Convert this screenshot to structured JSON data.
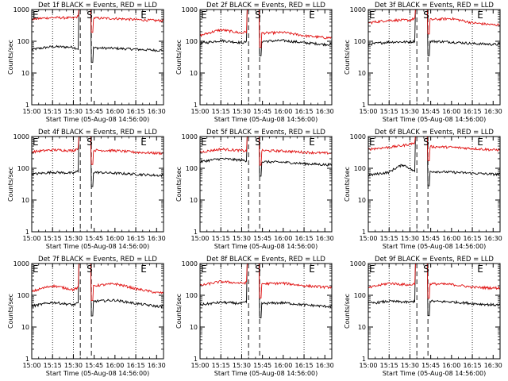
{
  "chart_data": [
    {
      "type": "line",
      "title": "Det 1f BLACK = Events, RED = LLD",
      "xlabel": "Start Time (05-Aug-08 14:56:00)",
      "ylabel": "Counts/sec",
      "x_range": [
        "15:00",
        "16:35"
      ],
      "y_scale": "log",
      "ylim": [
        1,
        1000
      ],
      "x_ticks": [
        "15:00",
        "15:15",
        "15:30",
        "15:45",
        "16:00",
        "16:15",
        "16:30"
      ],
      "y_ticks": [
        "1",
        "10",
        "100",
        "1000"
      ],
      "markers": [
        {
          "label": "E",
          "x": "15:00"
        },
        {
          "label": "S",
          "x": "15:39"
        },
        {
          "label": "E",
          "x": "16:18"
        }
      ],
      "dashed_lines": [
        "15:35",
        "15:43"
      ],
      "dotted_lines": [
        "15:15",
        "15:30",
        "16:15"
      ],
      "series": [
        {
          "name": "BLACK = Events",
          "color": "#000000",
          "x": [
            "15:00",
            "15:15",
            "15:30",
            "15:33",
            "15:45",
            "16:00",
            "16:15",
            "16:30"
          ],
          "y": [
            55,
            68,
            65,
            58,
            62,
            60,
            56,
            52
          ]
        },
        {
          "name": "RED = LLD",
          "color": "#e01010",
          "x": [
            "15:00",
            "15:15",
            "15:30",
            "15:33",
            "15:45",
            "16:00",
            "16:15",
            "16:30"
          ],
          "y": [
            500,
            560,
            540,
            600,
            540,
            520,
            480,
            450
          ]
        }
      ]
    },
    {
      "type": "line",
      "title": "Det 2f BLACK = Events, RED = LLD",
      "xlabel": "Start Time (05-Aug-08 14:56:00)",
      "ylabel": "Counts/sec",
      "x_range": [
        "15:00",
        "16:35"
      ],
      "y_scale": "log",
      "ylim": [
        1,
        1000
      ],
      "x_ticks": [
        "15:00",
        "15:15",
        "15:30",
        "15:45",
        "16:00",
        "16:15",
        "16:30"
      ],
      "y_ticks": [
        "1",
        "10",
        "100",
        "1000"
      ],
      "markers": [
        {
          "label": "E",
          "x": "15:00"
        },
        {
          "label": "S",
          "x": "15:39"
        },
        {
          "label": "E",
          "x": "16:18"
        }
      ],
      "dashed_lines": [
        "15:35",
        "15:43"
      ],
      "dotted_lines": [
        "15:15",
        "15:30",
        "16:15"
      ],
      "series": [
        {
          "name": "BLACK = Events",
          "color": "#000000",
          "x": [
            "15:00",
            "15:15",
            "15:30",
            "15:33",
            "15:45",
            "16:00",
            "16:15",
            "16:30"
          ],
          "y": [
            85,
            105,
            90,
            95,
            100,
            105,
            90,
            80
          ]
        },
        {
          "name": "RED = LLD",
          "color": "#e01010",
          "x": [
            "15:00",
            "15:15",
            "15:30",
            "15:33",
            "15:45",
            "16:00",
            "16:15",
            "16:30"
          ],
          "y": [
            150,
            230,
            180,
            200,
            180,
            190,
            150,
            130
          ]
        }
      ]
    },
    {
      "type": "line",
      "title": "Det 3f BLACK = Events, RED = LLD",
      "xlabel": "Start Time (05-Aug-08 14:56:00)",
      "ylabel": "Counts/sec",
      "x_range": [
        "15:00",
        "16:35"
      ],
      "y_scale": "log",
      "ylim": [
        1,
        1000
      ],
      "x_ticks": [
        "15:00",
        "15:15",
        "15:30",
        "15:45",
        "16:00",
        "16:15",
        "16:30"
      ],
      "y_ticks": [
        "1",
        "10",
        "100",
        "1000"
      ],
      "markers": [
        {
          "label": "E",
          "x": "15:00"
        },
        {
          "label": "S",
          "x": "15:39"
        },
        {
          "label": "E",
          "x": "16:18"
        }
      ],
      "dashed_lines": [
        "15:35",
        "15:43"
      ],
      "dotted_lines": [
        "15:15",
        "15:30",
        "16:15"
      ],
      "series": [
        {
          "name": "BLACK = Events",
          "color": "#000000",
          "x": [
            "15:00",
            "15:15",
            "15:30",
            "15:33",
            "15:45",
            "16:00",
            "16:15",
            "16:30"
          ],
          "y": [
            80,
            95,
            95,
            100,
            100,
            95,
            85,
            80
          ]
        },
        {
          "name": "RED = LLD",
          "color": "#e01010",
          "x": [
            "15:00",
            "15:15",
            "15:30",
            "15:33",
            "15:45",
            "16:00",
            "16:15",
            "16:30"
          ],
          "y": [
            380,
            460,
            460,
            520,
            480,
            520,
            380,
            330
          ]
        }
      ]
    },
    {
      "type": "line",
      "title": "Det 4f BLACK = Events, RED = LLD",
      "xlabel": "Start Time (05-Aug-08 14:56:00)",
      "ylabel": "Counts/sec",
      "x_range": [
        "15:00",
        "16:35"
      ],
      "y_scale": "log",
      "ylim": [
        1,
        1000
      ],
      "x_ticks": [
        "15:00",
        "15:15",
        "15:30",
        "15:45",
        "16:00",
        "16:15",
        "16:30"
      ],
      "y_ticks": [
        "1",
        "10",
        "100",
        "1000"
      ],
      "markers": [
        {
          "label": "E",
          "x": "15:00"
        },
        {
          "label": "S",
          "x": "15:39"
        },
        {
          "label": "E",
          "x": "16:18"
        }
      ],
      "dashed_lines": [
        "15:35",
        "15:43"
      ],
      "dotted_lines": [
        "15:15",
        "15:30",
        "16:15"
      ],
      "series": [
        {
          "name": "BLACK = Events",
          "color": "#000000",
          "x": [
            "15:00",
            "15:15",
            "15:30",
            "15:33",
            "15:45",
            "16:00",
            "16:15",
            "16:30"
          ],
          "y": [
            65,
            75,
            70,
            80,
            75,
            70,
            65,
            60
          ]
        },
        {
          "name": "RED = LLD",
          "color": "#e01010",
          "x": [
            "15:00",
            "15:15",
            "15:30",
            "15:33",
            "15:45",
            "16:00",
            "16:15",
            "16:30"
          ],
          "y": [
            330,
            380,
            360,
            420,
            370,
            360,
            320,
            300
          ]
        }
      ]
    },
    {
      "type": "line",
      "title": "Det 5f BLACK = Events, RED = LLD",
      "xlabel": "Start Time (05-Aug-08 14:56:00)",
      "ylabel": "Counts/sec",
      "x_range": [
        "15:00",
        "16:35"
      ],
      "y_scale": "log",
      "ylim": [
        1,
        1000
      ],
      "x_ticks": [
        "15:00",
        "15:15",
        "15:30",
        "15:45",
        "16:00",
        "16:15",
        "16:30"
      ],
      "y_ticks": [
        "1",
        "10",
        "100",
        "1000"
      ],
      "markers": [
        {
          "label": "E",
          "x": "15:00"
        },
        {
          "label": "S",
          "x": "15:39"
        },
        {
          "label": "E",
          "x": "16:18"
        }
      ],
      "dashed_lines": [
        "15:35",
        "15:43"
      ],
      "dotted_lines": [
        "15:15",
        "15:30",
        "16:15"
      ],
      "series": [
        {
          "name": "BLACK = Events",
          "color": "#000000",
          "x": [
            "15:00",
            "15:15",
            "15:30",
            "15:33",
            "15:45",
            "16:00",
            "16:15",
            "16:30"
          ],
          "y": [
            160,
            200,
            180,
            175,
            160,
            155,
            140,
            130
          ]
        },
        {
          "name": "RED = LLD",
          "color": "#e01010",
          "x": [
            "15:00",
            "15:15",
            "15:30",
            "15:33",
            "15:45",
            "16:00",
            "16:15",
            "16:30"
          ],
          "y": [
            320,
            400,
            360,
            350,
            360,
            350,
            320,
            300
          ]
        }
      ]
    },
    {
      "type": "line",
      "title": "Det 6f BLACK = Events, RED = LLD",
      "xlabel": "Start Time (05-Aug-08 14:56:00)",
      "ylabel": "Counts/sec",
      "x_range": [
        "15:00",
        "16:35"
      ],
      "y_scale": "log",
      "ylim": [
        1,
        1000
      ],
      "x_ticks": [
        "15:00",
        "15:15",
        "15:30",
        "15:45",
        "16:00",
        "16:15",
        "16:30"
      ],
      "y_ticks": [
        "1",
        "10",
        "100",
        "1000"
      ],
      "markers": [
        {
          "label": "E",
          "x": "15:00"
        },
        {
          "label": "S",
          "x": "15:39"
        },
        {
          "label": "E",
          "x": "16:18"
        }
      ],
      "dashed_lines": [
        "15:35",
        "15:43"
      ],
      "dotted_lines": [
        "15:15",
        "15:30",
        "16:15"
      ],
      "series": [
        {
          "name": "BLACK = Events",
          "color": "#000000",
          "x": [
            "15:00",
            "15:15",
            "15:25",
            "15:33",
            "15:45",
            "16:00",
            "16:15",
            "16:30"
          ],
          "y": [
            60,
            75,
            130,
            80,
            80,
            75,
            70,
            65
          ]
        },
        {
          "name": "RED = LLD",
          "color": "#e01010",
          "x": [
            "15:00",
            "15:15",
            "15:25",
            "15:33",
            "15:45",
            "16:00",
            "16:15",
            "16:30"
          ],
          "y": [
            400,
            460,
            520,
            620,
            480,
            460,
            420,
            380
          ]
        }
      ]
    },
    {
      "type": "line",
      "title": "Det 7f BLACK = Events, RED = LLD",
      "xlabel": "Start Time (05-Aug-08 14:56:00)",
      "ylabel": "Counts/sec",
      "x_range": [
        "15:00",
        "16:35"
      ],
      "y_scale": "log",
      "ylim": [
        1,
        1000
      ],
      "x_ticks": [
        "15:00",
        "15:15",
        "15:30",
        "15:45",
        "16:00",
        "16:15",
        "16:30"
      ],
      "y_ticks": [
        "1",
        "10",
        "100",
        "1000"
      ],
      "markers": [
        {
          "label": "E",
          "x": "15:00"
        },
        {
          "label": "S",
          "x": "15:39"
        },
        {
          "label": "E",
          "x": "16:18"
        }
      ],
      "dashed_lines": [
        "15:35",
        "15:43"
      ],
      "dotted_lines": [
        "15:15",
        "15:30",
        "16:15"
      ],
      "series": [
        {
          "name": "BLACK = Events",
          "color": "#000000",
          "x": [
            "15:00",
            "15:15",
            "15:30",
            "15:33",
            "15:45",
            "16:00",
            "16:15",
            "16:30"
          ],
          "y": [
            45,
            60,
            50,
            55,
            65,
            70,
            55,
            45
          ]
        },
        {
          "name": "RED = LLD",
          "color": "#e01010",
          "x": [
            "15:00",
            "15:15",
            "15:30",
            "15:33",
            "15:45",
            "16:00",
            "16:15",
            "16:30"
          ],
          "y": [
            130,
            200,
            150,
            170,
            200,
            230,
            160,
            120
          ]
        }
      ]
    },
    {
      "type": "line",
      "title": "Det 8f BLACK = Events, RED = LLD",
      "xlabel": "Start Time (05-Aug-08 14:56:00)",
      "ylabel": "Counts/sec",
      "x_range": [
        "15:00",
        "16:35"
      ],
      "y_scale": "log",
      "ylim": [
        1,
        1000
      ],
      "x_ticks": [
        "15:00",
        "15:15",
        "15:30",
        "15:45",
        "16:00",
        "16:15",
        "16:30"
      ],
      "y_ticks": [
        "1",
        "10",
        "100",
        "1000"
      ],
      "markers": [
        {
          "label": "E",
          "x": "15:00"
        },
        {
          "label": "S",
          "x": "15:39"
        },
        {
          "label": "E",
          "x": "16:18"
        }
      ],
      "dashed_lines": [
        "15:35",
        "15:43"
      ],
      "dotted_lines": [
        "15:15",
        "15:30",
        "16:15"
      ],
      "series": [
        {
          "name": "BLACK = Events",
          "color": "#000000",
          "x": [
            "15:00",
            "15:15",
            "15:30",
            "15:33",
            "15:45",
            "16:00",
            "16:15",
            "16:30"
          ],
          "y": [
            50,
            60,
            55,
            60,
            55,
            58,
            50,
            45
          ]
        },
        {
          "name": "RED = LLD",
          "color": "#e01010",
          "x": [
            "15:00",
            "15:15",
            "15:30",
            "15:33",
            "15:45",
            "16:00",
            "16:15",
            "16:30"
          ],
          "y": [
            200,
            270,
            240,
            250,
            230,
            240,
            200,
            180
          ]
        }
      ]
    },
    {
      "type": "line",
      "title": "Det 9f BLACK = Events, RED = LLD",
      "xlabel": "Start Time (05-Aug-08 14:56:00)",
      "ylabel": "Counts/sec",
      "x_range": [
        "15:00",
        "16:35"
      ],
      "y_scale": "log",
      "ylim": [
        1,
        1000
      ],
      "x_ticks": [
        "15:00",
        "15:15",
        "15:30",
        "15:45",
        "16:00",
        "16:15",
        "16:30"
      ],
      "y_ticks": [
        "1",
        "10",
        "100",
        "1000"
      ],
      "markers": [
        {
          "label": "E",
          "x": "15:00"
        },
        {
          "label": "S",
          "x": "15:39"
        },
        {
          "label": "E",
          "x": "16:18"
        }
      ],
      "dashed_lines": [
        "15:35",
        "15:43"
      ],
      "dotted_lines": [
        "15:15",
        "15:30",
        "16:15"
      ],
      "series": [
        {
          "name": "BLACK = Events",
          "color": "#000000",
          "x": [
            "15:00",
            "15:15",
            "15:30",
            "15:33",
            "15:45",
            "16:00",
            "16:15",
            "16:30"
          ],
          "y": [
            55,
            65,
            60,
            65,
            65,
            62,
            55,
            50
          ]
        },
        {
          "name": "RED = LLD",
          "color": "#e01010",
          "x": [
            "15:00",
            "15:15",
            "15:30",
            "15:33",
            "15:45",
            "16:00",
            "16:15",
            "16:30"
          ],
          "y": [
            170,
            240,
            210,
            230,
            230,
            220,
            180,
            170
          ]
        }
      ]
    }
  ]
}
